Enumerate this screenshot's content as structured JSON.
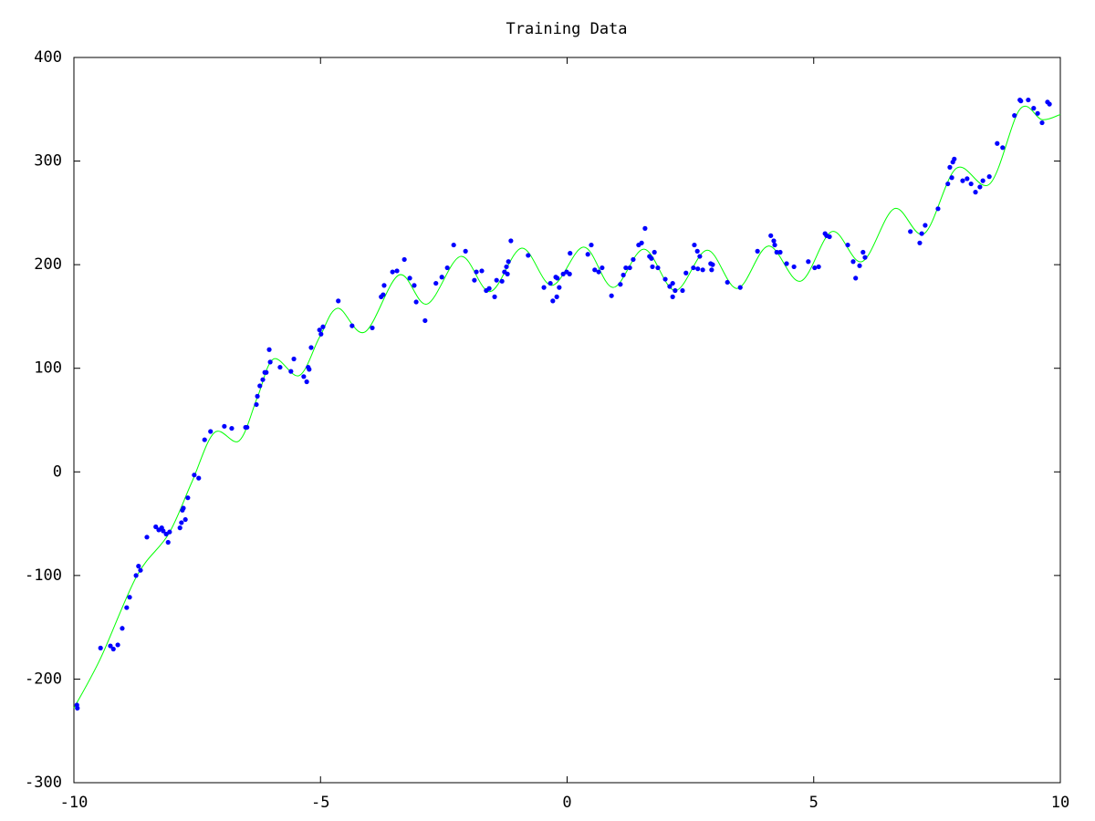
{
  "chart_data": {
    "type": "scatter",
    "title": "Training Data",
    "xlim": [
      -10,
      10
    ],
    "xticks": [
      -10,
      -5,
      0,
      5,
      10
    ],
    "ylim": [
      -300,
      400
    ],
    "yticks": [
      -300,
      -200,
      -100,
      0,
      100,
      200,
      300,
      400
    ],
    "grid": false,
    "series": [
      {
        "type": "line",
        "color": "#00ff00",
        "x": [
          -10,
          -9.46,
          -8.72,
          -8.08,
          -7.61,
          -7.15,
          -6.65,
          -6.28,
          -5.95,
          -5.43,
          -5.02,
          -4.65,
          -4.1,
          -3.41,
          -2.84,
          -2.16,
          -1.56,
          -0.92,
          -0.31,
          0.34,
          0.93,
          1.56,
          2.19,
          2.84,
          3.45,
          4.08,
          4.73,
          5.37,
          5.98,
          6.63,
          7.24,
          7.89,
          8.57,
          9.18,
          9.63,
          10
        ],
        "y": [
          -228,
          -180,
          -100,
          -60,
          -10,
          38,
          30,
          72,
          109,
          93,
          130,
          158,
          135,
          190,
          162,
          208,
          174,
          216,
          180,
          217,
          178,
          215,
          175,
          214,
          177,
          218,
          184,
          232,
          203,
          254,
          230,
          293,
          278,
          350,
          340,
          345
        ]
      },
      {
        "type": "scatter",
        "color": "#0000ff",
        "x": [
          -9.94,
          -9.93,
          -9.46,
          -9.26,
          -9.2,
          -9.11,
          -9.02,
          -8.93,
          -8.87,
          -8.74,
          -8.69,
          -8.65,
          -8.52,
          -8.34,
          -8.28,
          -8.22,
          -8.19,
          -8.13,
          -8.09,
          -8.06,
          -7.85,
          -7.82,
          -7.8,
          -7.78,
          -7.74,
          -7.69,
          -7.56,
          -7.47,
          -7.35,
          -7.23,
          -6.95,
          -6.8,
          -6.52,
          -6.49,
          -6.3,
          -6.28,
          -6.23,
          -6.17,
          -6.13,
          -6.1,
          -6.04,
          -6.02,
          -5.82,
          -5.6,
          -5.54,
          -5.34,
          -5.28,
          -5.25,
          -5.23,
          -5.19,
          -5.02,
          -4.99,
          -4.95,
          -4.64,
          -4.36,
          -3.95,
          -3.77,
          -3.73,
          -3.71,
          -3.54,
          -3.45,
          -3.3,
          -3.19,
          -3.1,
          -3.06,
          -2.88,
          -2.66,
          -2.54,
          -2.43,
          -2.3,
          -2.06,
          -1.88,
          -1.84,
          -1.73,
          -1.64,
          -1.58,
          -1.47,
          -1.43,
          -1.32,
          -1.27,
          -1.23,
          -1.19,
          -1.21,
          -1.14,
          -0.79,
          -0.47,
          -0.34,
          -0.29,
          -0.21,
          -0.23,
          -0.2,
          -0.16,
          -0.08,
          -0.01,
          0.05,
          0.06,
          0.42,
          0.49,
          0.56,
          0.64,
          0.71,
          0.9,
          1.08,
          1.14,
          1.19,
          1.27,
          1.34,
          1.45,
          1.51,
          1.58,
          1.67,
          1.71,
          1.77,
          1.73,
          1.84,
          1.99,
          2.08,
          2.14,
          2.14,
          2.19,
          2.34,
          2.41,
          2.56,
          2.58,
          2.64,
          2.65,
          2.69,
          2.75,
          2.91,
          2.93,
          2.95,
          3.25,
          3.51,
          3.86,
          4.13,
          4.19,
          4.21,
          4.25,
          4.32,
          4.45,
          4.6,
          4.89,
          5.02,
          5.1,
          5.23,
          5.26,
          5.32,
          5.69,
          5.8,
          5.85,
          5.93,
          6.0,
          6.04,
          6.96,
          7.15,
          7.19,
          7.26,
          7.52,
          7.72,
          7.8,
          7.76,
          7.82,
          7.85,
          8.02,
          8.11,
          8.19,
          8.28,
          8.37,
          8.43,
          8.56,
          8.72,
          8.83,
          9.07,
          9.18,
          9.2,
          9.35,
          9.46,
          9.54,
          9.63,
          9.74,
          9.78
        ],
        "y": [
          -225,
          -228,
          -170,
          -168,
          -171,
          -167,
          -151,
          -131,
          -121,
          -100,
          -91,
          -95,
          -63,
          -53,
          -56,
          -54,
          -57,
          -60,
          -68,
          -58,
          -54,
          -49,
          -37,
          -35,
          -46,
          -25,
          -3,
          -6,
          31,
          39,
          44,
          42,
          43,
          43,
          65,
          73,
          83,
          89,
          96,
          96,
          118,
          106,
          101,
          97,
          109,
          92,
          87,
          101,
          99,
          120,
          137,
          133,
          140,
          165,
          141,
          139,
          169,
          171,
          180,
          193,
          194,
          205,
          187,
          180,
          164,
          146,
          182,
          188,
          197,
          219,
          213,
          185,
          193,
          194,
          175,
          177,
          169,
          185,
          184,
          193,
          198,
          203,
          191,
          223,
          209,
          178,
          182,
          165,
          169,
          188,
          187,
          178,
          191,
          193,
          191,
          211,
          210,
          219,
          195,
          193,
          197,
          170,
          181,
          190,
          197,
          197,
          205,
          219,
          221,
          235,
          208,
          206,
          212,
          198,
          197,
          186,
          179,
          182,
          169,
          175,
          175,
          192,
          197,
          219,
          213,
          196,
          208,
          195,
          201,
          195,
          200,
          183,
          178,
          213,
          228,
          223,
          219,
          212,
          212,
          201,
          198,
          203,
          197,
          198,
          230,
          228,
          227,
          219,
          203,
          187,
          199,
          212,
          207,
          232,
          221,
          230,
          238,
          254,
          278,
          284,
          294,
          299,
          302,
          281,
          283,
          278,
          270,
          275,
          281,
          285,
          317,
          313,
          344,
          359,
          358,
          359,
          351,
          346,
          337,
          357,
          355
        ]
      }
    ]
  }
}
